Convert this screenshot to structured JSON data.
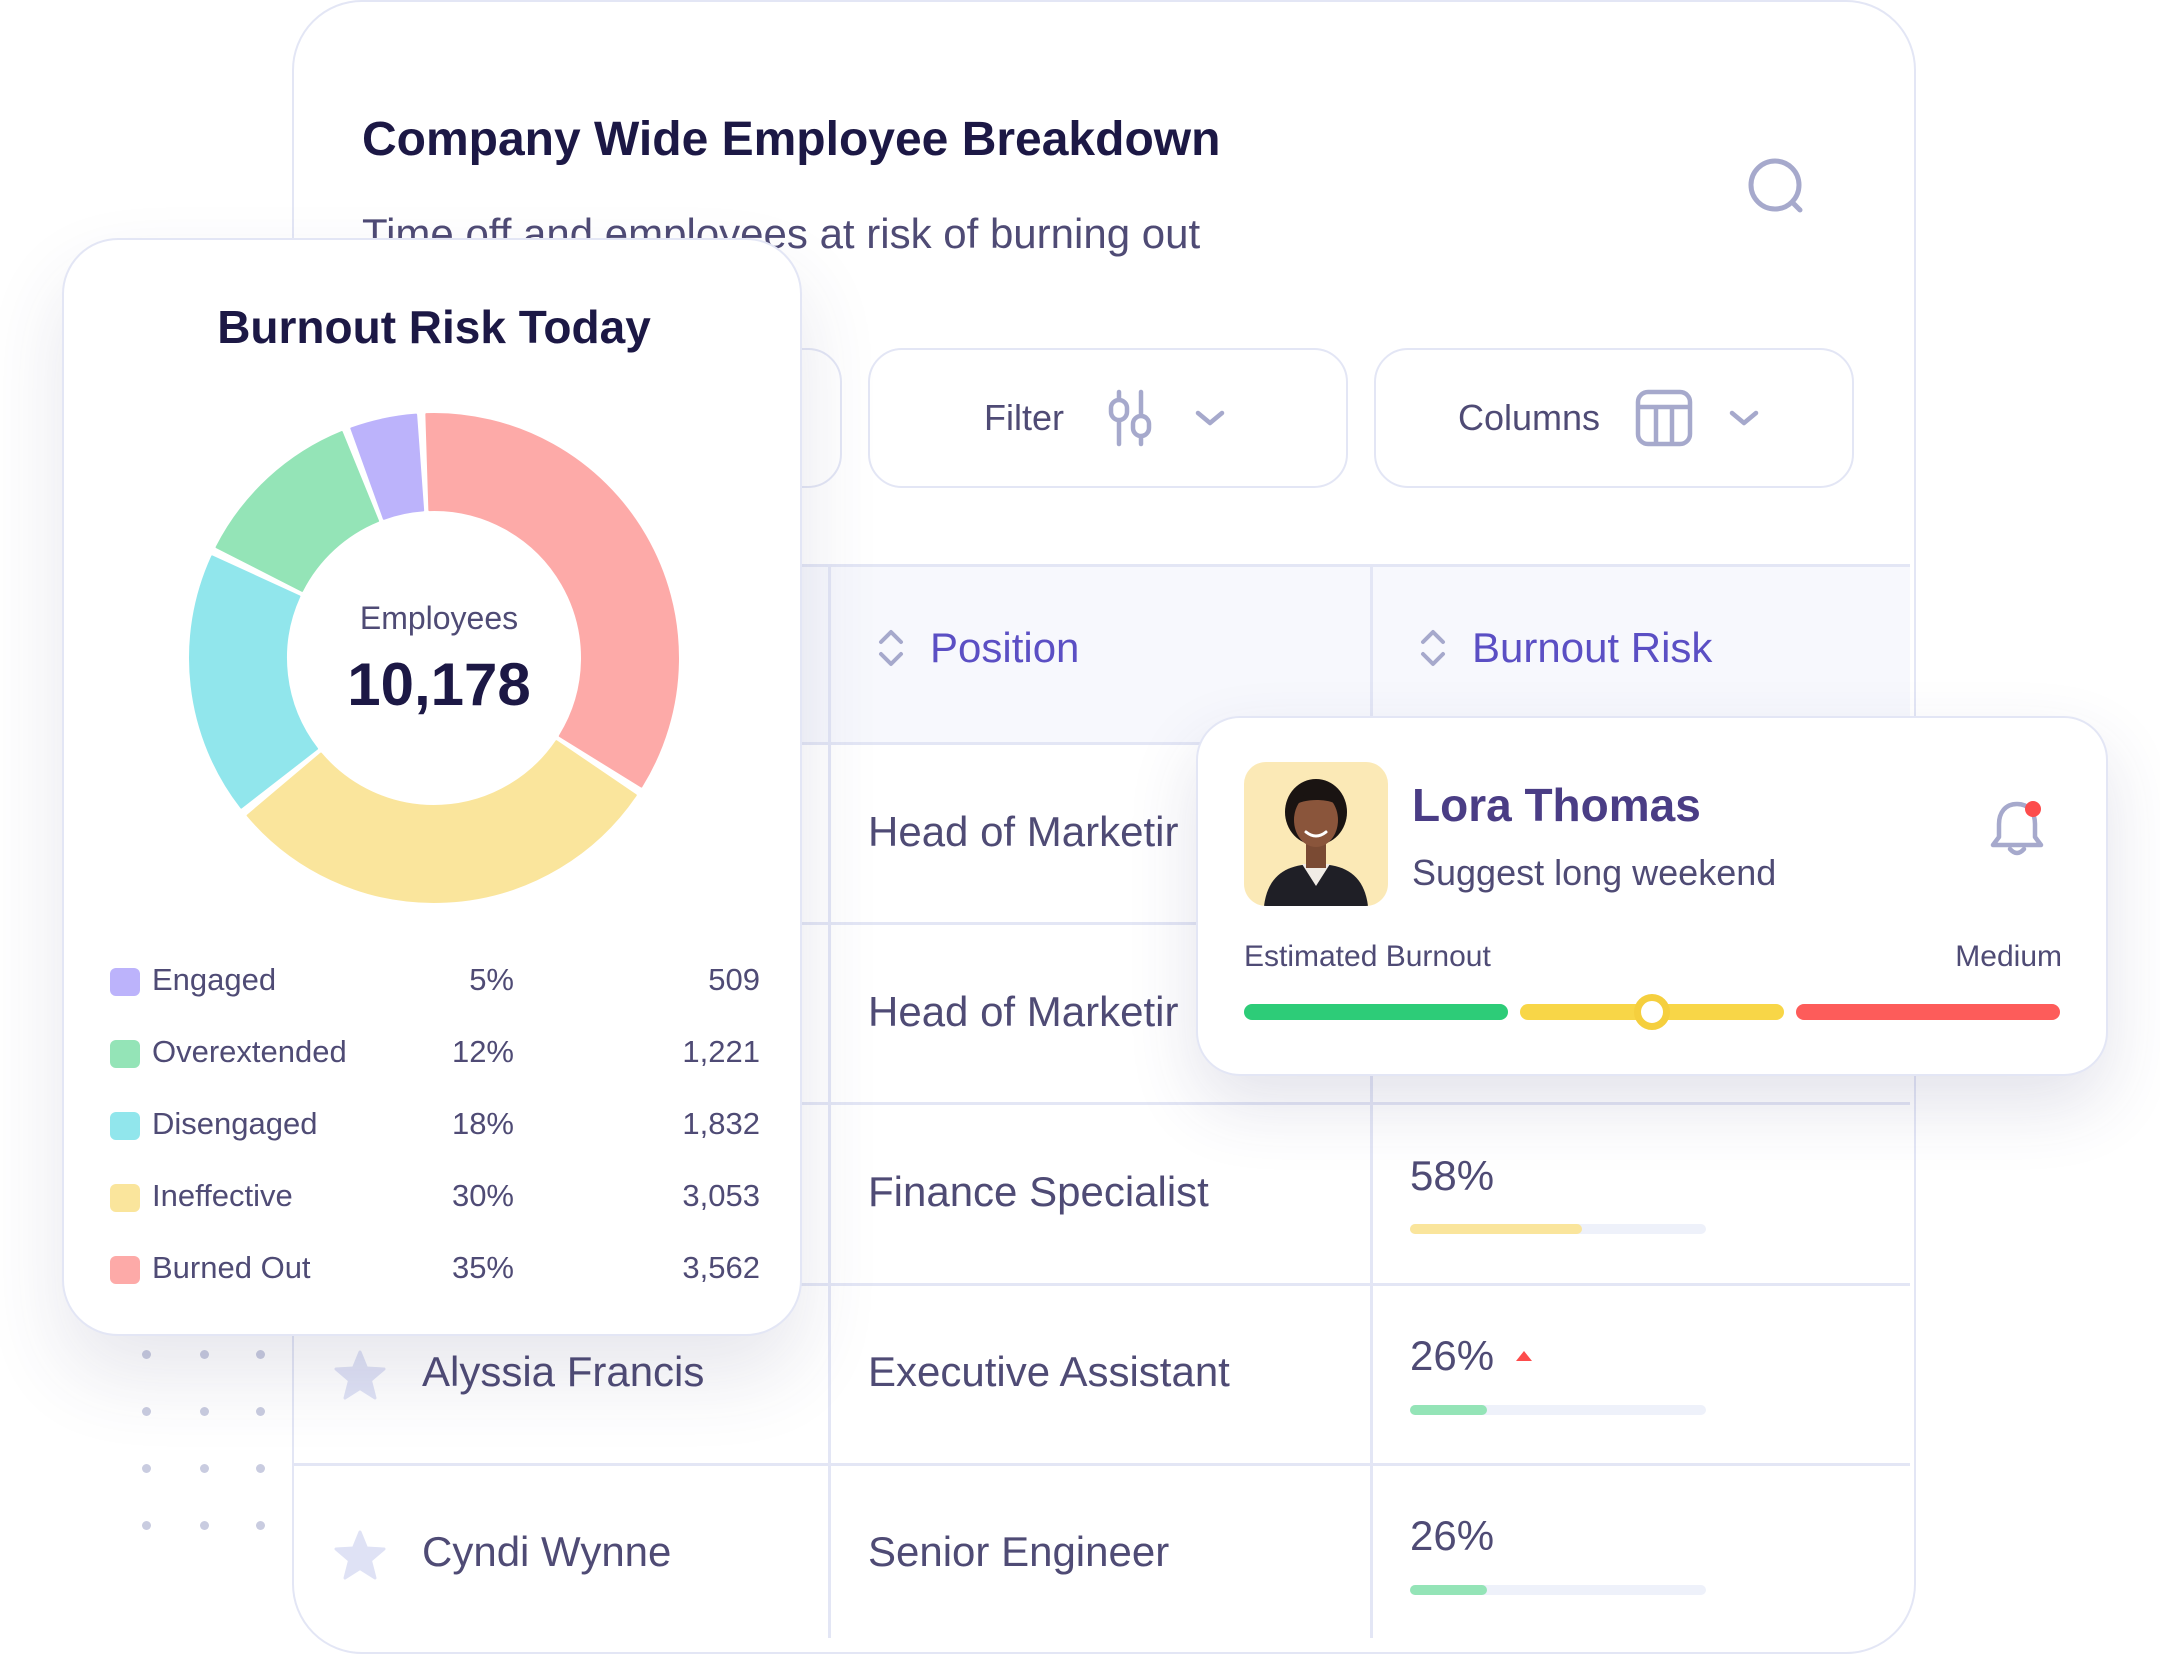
{
  "header": {
    "title": "Company Wide Employee Breakdown",
    "subtitle": "Time off and employees at risk of burning out"
  },
  "toolbar": {
    "filter_label": "Filter",
    "columns_label": "Columns"
  },
  "table": {
    "columns": [
      "Position",
      "Burnout Risk"
    ],
    "rows": [
      {
        "name": "",
        "position": "Head of Marketir",
        "risk": ""
      },
      {
        "name": "",
        "position": "Head of Marketir",
        "risk": ""
      },
      {
        "name": "",
        "position": "Finance Specialist",
        "risk": "58%",
        "risk_value": 0.58,
        "bar_color": "#fae59c"
      },
      {
        "name": "Alyssia Francis",
        "position": "Executive Assistant",
        "risk": "26%",
        "risk_value": 0.26,
        "bar_color": "#94e4b7",
        "trend": "up"
      },
      {
        "name": "Cyndi Wynne",
        "position": "Senior Engineer",
        "risk": "26%",
        "risk_value": 0.26,
        "bar_color": "#94e4b7"
      }
    ]
  },
  "burnout_card": {
    "title": "Burnout Risk Today",
    "center_label": "Employees",
    "center_value": "10,178",
    "legend": [
      {
        "name": "Engaged",
        "percent": "5%",
        "count": "509",
        "color": "#bcb3fb"
      },
      {
        "name": "Overextended",
        "percent": "12%",
        "count": "1,221",
        "color": "#94e4b7"
      },
      {
        "name": "Disengaged",
        "percent": "18%",
        "count": "1,832",
        "color": "#91e6ec"
      },
      {
        "name": "Ineffective",
        "percent": "30%",
        "count": "3,053",
        "color": "#fae59c"
      },
      {
        "name": "Burned Out",
        "percent": "35%",
        "count": "3,562",
        "color": "#fdaaa8"
      }
    ]
  },
  "chart_data": {
    "type": "pie",
    "title": "Burnout Risk Today",
    "categories": [
      "Engaged",
      "Overextended",
      "Disengaged",
      "Ineffective",
      "Burned Out"
    ],
    "values": [
      509,
      1221,
      1832,
      3053,
      3562
    ],
    "percents": [
      5,
      12,
      18,
      30,
      35
    ],
    "colors": [
      "#bcb3fb",
      "#94e4b7",
      "#91e6ec",
      "#fae59c",
      "#fdaaa8"
    ]
  },
  "profile": {
    "name": "Lora Thomas",
    "suggestion": "Suggest long weekend",
    "estimate_label": "Estimated Burnout",
    "estimate_level": "Medium",
    "estimate_value": 0.5,
    "scale_colors": [
      "#2dcc78",
      "#f8d647",
      "#fd5c5a"
    ],
    "notification_dot": "#fd4c4c"
  },
  "icons": [
    "search-icon",
    "filter-sliders-icon",
    "chevron-down-icon",
    "columns-table-icon",
    "sort-icon",
    "star-icon",
    "bell-icon",
    "trend-up-icon"
  ]
}
